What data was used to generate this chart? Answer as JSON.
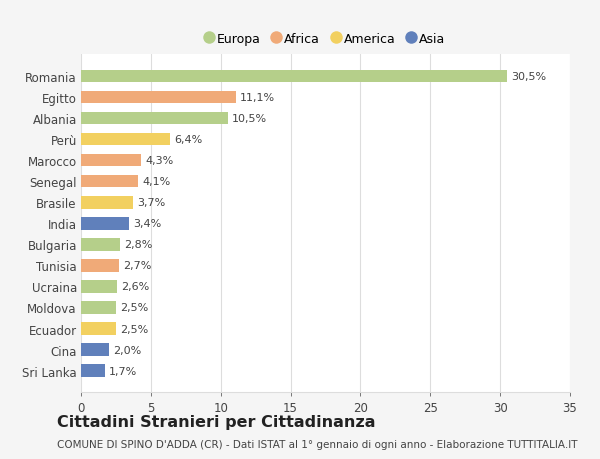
{
  "countries": [
    "Romania",
    "Egitto",
    "Albania",
    "Perù",
    "Marocco",
    "Senegal",
    "Brasile",
    "India",
    "Bulgaria",
    "Tunisia",
    "Ucraina",
    "Moldova",
    "Ecuador",
    "Cina",
    "Sri Lanka"
  ],
  "values": [
    30.5,
    11.1,
    10.5,
    6.4,
    4.3,
    4.1,
    3.7,
    3.4,
    2.8,
    2.7,
    2.6,
    2.5,
    2.5,
    2.0,
    1.7
  ],
  "labels": [
    "30,5%",
    "11,1%",
    "10,5%",
    "6,4%",
    "4,3%",
    "4,1%",
    "3,7%",
    "3,4%",
    "2,8%",
    "2,7%",
    "2,6%",
    "2,5%",
    "2,5%",
    "2,0%",
    "1,7%"
  ],
  "continents": [
    "Europa",
    "Africa",
    "Europa",
    "America",
    "Africa",
    "Africa",
    "America",
    "Asia",
    "Europa",
    "Africa",
    "Europa",
    "Europa",
    "America",
    "Asia",
    "Asia"
  ],
  "colors": {
    "Europa": "#b5cf8a",
    "Africa": "#f0aa78",
    "America": "#f2d060",
    "Asia": "#6080bb"
  },
  "title": "Cittadini Stranieri per Cittadinanza",
  "subtitle": "COMUNE DI SPINO D'ADDA (CR) - Dati ISTAT al 1° gennaio di ogni anno - Elaborazione TUTTITALIA.IT",
  "xlim": [
    0,
    35
  ],
  "xticks": [
    0,
    5,
    10,
    15,
    20,
    25,
    30,
    35
  ],
  "background_color": "#f5f5f5",
  "plot_bg_color": "#ffffff",
  "grid_color": "#dddddd",
  "text_color": "#444444",
  "label_fontsize": 8.0,
  "ytick_fontsize": 8.5,
  "xtick_fontsize": 8.5,
  "title_fontsize": 11.5,
  "subtitle_fontsize": 7.5,
  "bar_height": 0.6
}
